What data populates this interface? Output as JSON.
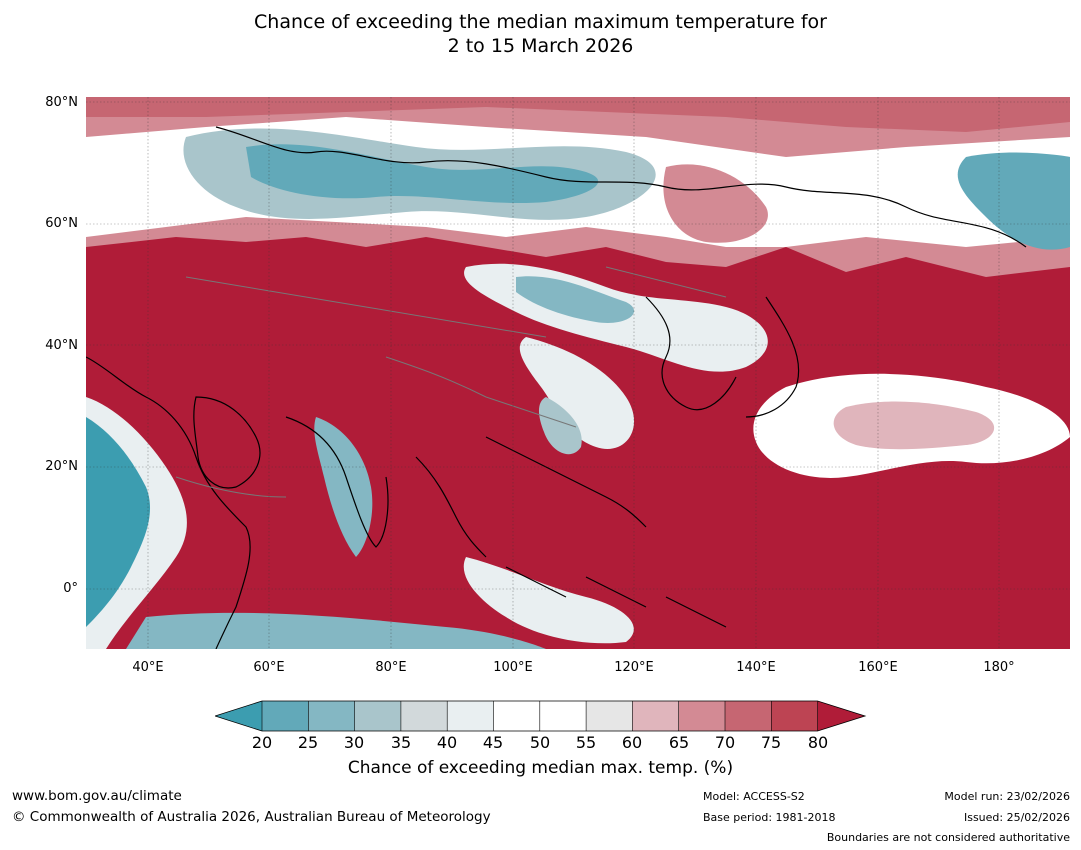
{
  "title": {
    "line1": "Chance of exceeding the median maximum temperature for",
    "line2": "2 to 15 March 2026"
  },
  "map": {
    "lat_labels": [
      "80°N",
      "60°N",
      "40°N",
      "20°N",
      "0°"
    ],
    "lon_labels": [
      "40°E",
      "60°E",
      "80°E",
      "100°E",
      "120°E",
      "140°E",
      "160°E",
      "180°"
    ]
  },
  "colorbar": {
    "ticks": [
      "20",
      "25",
      "30",
      "35",
      "40",
      "45",
      "50",
      "55",
      "60",
      "65",
      "70",
      "75",
      "80"
    ],
    "colors": [
      "#3c9db0",
      "#62a9b9",
      "#84b7c3",
      "#a9c5cb",
      "#d2d9db",
      "#e9eff1",
      "#ffffff",
      "#ffffff",
      "#e6e6e6",
      "#e0b5bc",
      "#d38a94",
      "#c66672",
      "#bd4453",
      "#b01c38"
    ],
    "label": "Chance of exceeding median max. temp. (%)"
  },
  "footer": {
    "website": "www.bom.gov.au/climate",
    "copyright": "© Commonwealth of Australia 2026, Australian Bureau of Meteorology",
    "model": "Model: ACCESS-S2",
    "base_period": "Base period: 1981-2018",
    "model_run": "Model run: 23/02/2026",
    "issued": "Issued: 25/02/2026",
    "disclaimer": "Boundaries are not considered authoritative"
  }
}
